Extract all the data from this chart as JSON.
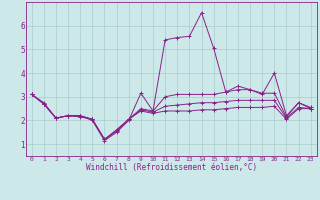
{
  "xlabel": "Windchill (Refroidissement éolien,°C)",
  "bg_color": "#cce8e8",
  "grid_color": "#aacccc",
  "line_color": "#882288",
  "xlim": [
    -0.5,
    23.5
  ],
  "ylim": [
    0.5,
    7.0
  ],
  "yticks": [
    1,
    2,
    3,
    4,
    5,
    6
  ],
  "xticks": [
    0,
    1,
    2,
    3,
    4,
    5,
    6,
    7,
    8,
    9,
    10,
    11,
    12,
    13,
    14,
    15,
    16,
    17,
    18,
    19,
    20,
    21,
    22,
    23
  ],
  "lines": [
    [
      3.1,
      2.7,
      2.1,
      2.2,
      2.2,
      2.0,
      1.15,
      1.5,
      2.0,
      3.15,
      2.4,
      5.4,
      5.5,
      5.55,
      6.55,
      5.05,
      3.2,
      3.45,
      3.3,
      3.1,
      4.0,
      2.2,
      2.75,
      2.5
    ],
    [
      3.1,
      2.75,
      2.1,
      2.2,
      2.15,
      2.05,
      1.2,
      1.6,
      2.05,
      2.5,
      2.4,
      3.0,
      3.1,
      3.1,
      3.1,
      3.1,
      3.2,
      3.3,
      3.3,
      3.15,
      3.15,
      2.15,
      2.75,
      2.55
    ],
    [
      3.1,
      2.7,
      2.1,
      2.2,
      2.2,
      2.05,
      1.2,
      1.55,
      2.05,
      2.45,
      2.35,
      2.6,
      2.65,
      2.7,
      2.75,
      2.75,
      2.8,
      2.85,
      2.85,
      2.85,
      2.85,
      2.1,
      2.55,
      2.5
    ],
    [
      3.1,
      2.7,
      2.1,
      2.2,
      2.2,
      2.05,
      1.2,
      1.6,
      2.05,
      2.4,
      2.3,
      2.4,
      2.4,
      2.4,
      2.45,
      2.45,
      2.5,
      2.55,
      2.55,
      2.55,
      2.6,
      2.05,
      2.5,
      2.5
    ]
  ]
}
